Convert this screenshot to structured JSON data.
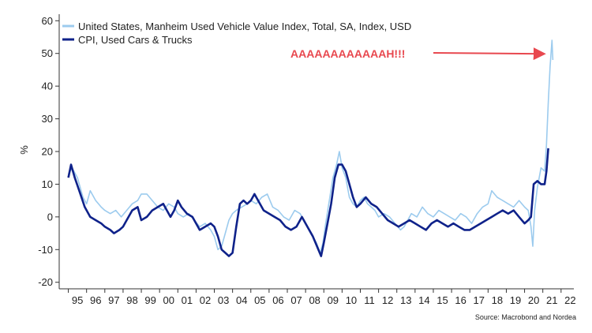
{
  "chart_data": {
    "type": "line",
    "ylabel": "%",
    "ylim": [
      -22,
      62
    ],
    "xlim": [
      1994.5,
      2022.7
    ],
    "y_ticks": [
      "-20",
      "-10",
      "0",
      "10",
      "20",
      "30",
      "40",
      "50",
      "60"
    ],
    "x_ticks": [
      "95",
      "96",
      "97",
      "98",
      "99",
      "00",
      "01",
      "02",
      "03",
      "04",
      "05",
      "06",
      "07",
      "08",
      "09",
      "10",
      "11",
      "12",
      "13",
      "14",
      "15",
      "16",
      "17",
      "18",
      "19",
      "20",
      "21",
      "22"
    ],
    "grid": false,
    "legend_position": "top-left",
    "series": [
      {
        "name": "United States, Manheim Used Vehicle Value Index, Total, SA, Index, USD",
        "color": "#9ccbee",
        "points": [
          [
            1995.0,
            13
          ],
          [
            1995.2,
            15
          ],
          [
            1995.5,
            12
          ],
          [
            1995.8,
            6
          ],
          [
            1996.0,
            4
          ],
          [
            1996.2,
            8
          ],
          [
            1996.5,
            5
          ],
          [
            1996.8,
            3
          ],
          [
            1997.0,
            2
          ],
          [
            1997.3,
            1
          ],
          [
            1997.6,
            2
          ],
          [
            1997.9,
            0
          ],
          [
            1998.2,
            2
          ],
          [
            1998.5,
            4
          ],
          [
            1998.8,
            5
          ],
          [
            1999.0,
            7
          ],
          [
            1999.3,
            7
          ],
          [
            1999.6,
            5
          ],
          [
            1999.9,
            3
          ],
          [
            2000.2,
            2
          ],
          [
            2000.5,
            4
          ],
          [
            2000.8,
            3
          ],
          [
            2001.0,
            1
          ],
          [
            2001.3,
            0
          ],
          [
            2001.6,
            1
          ],
          [
            2001.9,
            -1
          ],
          [
            2002.2,
            -3
          ],
          [
            2002.5,
            -2
          ],
          [
            2002.8,
            -4
          ],
          [
            2003.0,
            -6
          ],
          [
            2003.2,
            -10
          ],
          [
            2003.4,
            -9
          ],
          [
            2003.6,
            -5
          ],
          [
            2003.8,
            -1
          ],
          [
            2004.0,
            1
          ],
          [
            2004.2,
            2
          ],
          [
            2004.5,
            3
          ],
          [
            2004.8,
            4
          ],
          [
            2005.0,
            5
          ],
          [
            2005.3,
            4
          ],
          [
            2005.6,
            6
          ],
          [
            2005.9,
            7
          ],
          [
            2006.2,
            3
          ],
          [
            2006.5,
            2
          ],
          [
            2006.8,
            0
          ],
          [
            2007.1,
            -1
          ],
          [
            2007.4,
            2
          ],
          [
            2007.7,
            1
          ],
          [
            2008.0,
            -2
          ],
          [
            2008.3,
            -5
          ],
          [
            2008.6,
            -8
          ],
          [
            2008.8,
            -11
          ],
          [
            2008.95,
            -8
          ],
          [
            2009.1,
            -2
          ],
          [
            2009.3,
            5
          ],
          [
            2009.5,
            12
          ],
          [
            2009.7,
            16
          ],
          [
            2009.85,
            20
          ],
          [
            2010.0,
            15
          ],
          [
            2010.2,
            12
          ],
          [
            2010.4,
            6
          ],
          [
            2010.6,
            4
          ],
          [
            2010.8,
            3
          ],
          [
            2011.0,
            5
          ],
          [
            2011.2,
            6
          ],
          [
            2011.4,
            4
          ],
          [
            2011.6,
            3
          ],
          [
            2011.8,
            2
          ],
          [
            2012.0,
            0
          ],
          [
            2012.3,
            1
          ],
          [
            2012.6,
            0
          ],
          [
            2012.9,
            -2
          ],
          [
            2013.2,
            -4
          ],
          [
            2013.4,
            -3
          ],
          [
            2013.6,
            -1
          ],
          [
            2013.8,
            1
          ],
          [
            2014.1,
            0
          ],
          [
            2014.4,
            3
          ],
          [
            2014.7,
            1
          ],
          [
            2015.0,
            0
          ],
          [
            2015.3,
            2
          ],
          [
            2015.6,
            1
          ],
          [
            2015.9,
            0
          ],
          [
            2016.2,
            -1
          ],
          [
            2016.5,
            1
          ],
          [
            2016.8,
            0
          ],
          [
            2017.1,
            -2
          ],
          [
            2017.4,
            1
          ],
          [
            2017.7,
            3
          ],
          [
            2018.0,
            4
          ],
          [
            2018.2,
            8
          ],
          [
            2018.5,
            6
          ],
          [
            2018.8,
            5
          ],
          [
            2019.1,
            4
          ],
          [
            2019.4,
            3
          ],
          [
            2019.7,
            5
          ],
          [
            2020.0,
            3
          ],
          [
            2020.2,
            2
          ],
          [
            2020.35,
            -3
          ],
          [
            2020.45,
            -9
          ],
          [
            2020.55,
            2
          ],
          [
            2020.7,
            9
          ],
          [
            2020.9,
            15
          ],
          [
            2021.1,
            14
          ],
          [
            2021.2,
            22
          ],
          [
            2021.3,
            35
          ],
          [
            2021.4,
            46
          ],
          [
            2021.5,
            54
          ],
          [
            2021.55,
            48
          ]
        ]
      },
      {
        "name": "CPI, Used Cars & Trucks",
        "color": "#0f228a",
        "points": [
          [
            1995.0,
            12
          ],
          [
            1995.15,
            16
          ],
          [
            1995.35,
            12
          ],
          [
            1995.6,
            8
          ],
          [
            1995.9,
            3
          ],
          [
            1996.2,
            0
          ],
          [
            1996.5,
            -1
          ],
          [
            1996.8,
            -2
          ],
          [
            1997.0,
            -3
          ],
          [
            1997.3,
            -4
          ],
          [
            1997.5,
            -5
          ],
          [
            1997.8,
            -4
          ],
          [
            1998.0,
            -3
          ],
          [
            1998.2,
            -1
          ],
          [
            1998.5,
            2
          ],
          [
            1998.8,
            3
          ],
          [
            1999.0,
            -1
          ],
          [
            1999.3,
            0
          ],
          [
            1999.6,
            2
          ],
          [
            1999.9,
            3
          ],
          [
            2000.2,
            4
          ],
          [
            2000.4,
            2
          ],
          [
            2000.6,
            0
          ],
          [
            2000.8,
            2
          ],
          [
            2001.0,
            5
          ],
          [
            2001.2,
            3
          ],
          [
            2001.5,
            1
          ],
          [
            2001.8,
            0
          ],
          [
            2002.0,
            -2
          ],
          [
            2002.2,
            -4
          ],
          [
            2002.5,
            -3
          ],
          [
            2002.8,
            -2
          ],
          [
            2003.0,
            -3
          ],
          [
            2003.2,
            -6
          ],
          [
            2003.4,
            -10
          ],
          [
            2003.6,
            -11
          ],
          [
            2003.8,
            -12
          ],
          [
            2004.0,
            -11
          ],
          [
            2004.2,
            -3
          ],
          [
            2004.4,
            4
          ],
          [
            2004.6,
            5
          ],
          [
            2004.8,
            4
          ],
          [
            2005.0,
            5
          ],
          [
            2005.2,
            7
          ],
          [
            2005.4,
            5
          ],
          [
            2005.7,
            2
          ],
          [
            2006.0,
            1
          ],
          [
            2006.3,
            0
          ],
          [
            2006.6,
            -1
          ],
          [
            2006.9,
            -3
          ],
          [
            2007.2,
            -4
          ],
          [
            2007.5,
            -3
          ],
          [
            2007.8,
            0
          ],
          [
            2008.1,
            -3
          ],
          [
            2008.4,
            -6
          ],
          [
            2008.7,
            -10
          ],
          [
            2008.85,
            -12
          ],
          [
            2009.0,
            -8
          ],
          [
            2009.2,
            -2
          ],
          [
            2009.4,
            4
          ],
          [
            2009.6,
            12
          ],
          [
            2009.8,
            16
          ],
          [
            2010.0,
            16
          ],
          [
            2010.2,
            14
          ],
          [
            2010.4,
            10
          ],
          [
            2010.6,
            6
          ],
          [
            2010.8,
            3
          ],
          [
            2011.0,
            4
          ],
          [
            2011.3,
            6
          ],
          [
            2011.6,
            4
          ],
          [
            2011.9,
            3
          ],
          [
            2012.2,
            1
          ],
          [
            2012.5,
            -1
          ],
          [
            2012.8,
            -2
          ],
          [
            2013.1,
            -3
          ],
          [
            2013.4,
            -2
          ],
          [
            2013.7,
            -1
          ],
          [
            2014.0,
            -2
          ],
          [
            2014.3,
            -3
          ],
          [
            2014.6,
            -4
          ],
          [
            2014.9,
            -2
          ],
          [
            2015.2,
            -1
          ],
          [
            2015.5,
            -2
          ],
          [
            2015.8,
            -3
          ],
          [
            2016.1,
            -2
          ],
          [
            2016.4,
            -3
          ],
          [
            2016.7,
            -4
          ],
          [
            2017.0,
            -4
          ],
          [
            2017.3,
            -3
          ],
          [
            2017.6,
            -2
          ],
          [
            2017.9,
            -1
          ],
          [
            2018.2,
            0
          ],
          [
            2018.5,
            1
          ],
          [
            2018.8,
            2
          ],
          [
            2019.1,
            1
          ],
          [
            2019.4,
            2
          ],
          [
            2019.7,
            0
          ],
          [
            2020.0,
            -2
          ],
          [
            2020.2,
            -1
          ],
          [
            2020.35,
            0
          ],
          [
            2020.5,
            10
          ],
          [
            2020.7,
            11
          ],
          [
            2020.9,
            10
          ],
          [
            2021.1,
            10
          ],
          [
            2021.2,
            14
          ],
          [
            2021.3,
            21
          ]
        ]
      }
    ],
    "annotation": "AAAAAAAAAAAAH!!!",
    "annotation_target": [
      2021.35,
      50
    ],
    "source": "Source: Macrobond and Nordea"
  }
}
